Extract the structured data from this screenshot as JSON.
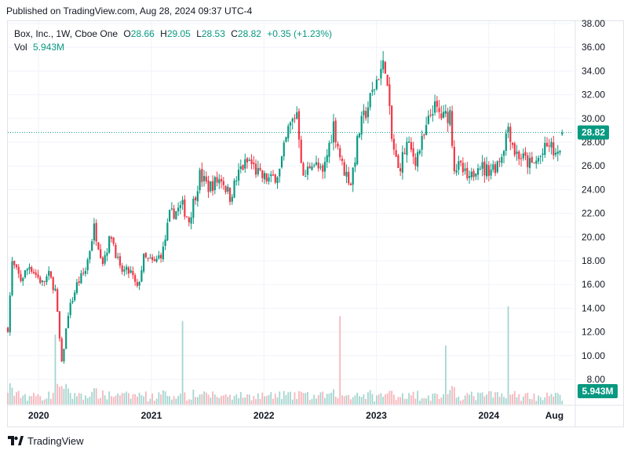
{
  "header": {
    "published": "Published on TradingView.com, Aug 28, 2024 09:37 UTC-4"
  },
  "legend": {
    "symbol": "Box, Inc., 1W, Cboe One",
    "open_label": "O",
    "open": "28.66",
    "high_label": "H",
    "high": "29.05",
    "low_label": "L",
    "low": "28.53",
    "close_label": "C",
    "close": "28.82",
    "change": "+0.35 (+1.23%)",
    "vol_label": "Vol",
    "vol": "5.943M"
  },
  "price_badge": "28.82",
  "volume_badge": "5.943M",
  "footer": {
    "brand": "TradingView",
    "logo_icon": "tradingview-logo-icon"
  },
  "colors": {
    "up": "#089981",
    "down": "#f23645",
    "up_vol": "#a5d6d0",
    "down_vol": "#f7b6bc",
    "grid": "#f0f3fa",
    "axis_text": "#131722"
  },
  "chart_data": {
    "type": "candlestick",
    "title": "Box, Inc., 1W, Cboe One",
    "interval": "1W",
    "y_axis": {
      "position": "right",
      "ylim": [
        6.9,
        38.4
      ],
      "ticks": [
        "8.00",
        "10.00",
        "12.00",
        "14.00",
        "16.00",
        "18.00",
        "20.00",
        "22.00",
        "24.00",
        "26.00",
        "28.00",
        "30.00",
        "32.00",
        "34.00",
        "36.00",
        "38.00"
      ]
    },
    "x_axis": {
      "ticks": [
        "2020",
        "2021",
        "2022",
        "2023",
        "2024",
        "Aug"
      ],
      "xlim": [
        "2019-09-23",
        "2024-09-30"
      ]
    },
    "grid": true,
    "last_price": 28.82,
    "last_volume": "5.943M",
    "volume_max_label_scale": "volume bars scaled to lower pane",
    "price_path": [
      [
        "2019-09-23",
        12.3
      ],
      [
        "2019-10-07",
        17.8
      ],
      [
        "2019-11-04",
        16.4
      ],
      [
        "2019-12-02",
        17.6
      ],
      [
        "2020-01-13",
        16.1
      ],
      [
        "2020-02-03",
        16.8
      ],
      [
        "2020-02-24",
        15.5
      ],
      [
        "2020-03-16",
        9.3
      ],
      [
        "2020-04-06",
        13.6
      ],
      [
        "2020-05-04",
        16.0
      ],
      [
        "2020-06-01",
        17.2
      ],
      [
        "2020-06-29",
        20.8
      ],
      [
        "2020-07-27",
        18.0
      ],
      [
        "2020-08-24",
        20.2
      ],
      [
        "2020-09-21",
        17.2
      ],
      [
        "2020-10-26",
        17.0
      ],
      [
        "2020-11-16",
        15.6
      ],
      [
        "2020-12-07",
        18.2
      ],
      [
        "2021-01-11",
        17.8
      ],
      [
        "2021-02-08",
        18.9
      ],
      [
        "2021-03-01",
        21.8
      ],
      [
        "2021-04-12",
        22.6
      ],
      [
        "2021-05-03",
        21.4
      ],
      [
        "2021-06-07",
        25.2
      ],
      [
        "2021-07-05",
        24.2
      ],
      [
        "2021-08-16",
        25.0
      ],
      [
        "2021-09-13",
        23.4
      ],
      [
        "2021-10-18",
        25.8
      ],
      [
        "2021-11-15",
        26.4
      ],
      [
        "2021-12-20",
        25.1
      ],
      [
        "2022-01-24",
        24.8
      ],
      [
        "2022-02-21",
        25.6
      ],
      [
        "2022-03-21",
        29.0
      ],
      [
        "2022-04-18",
        30.6
      ],
      [
        "2022-05-09",
        24.8
      ],
      [
        "2022-06-06",
        26.5
      ],
      [
        "2022-07-11",
        25.2
      ],
      [
        "2022-08-15",
        29.5
      ],
      [
        "2022-09-12",
        26.0
      ],
      [
        "2022-10-10",
        24.6
      ],
      [
        "2022-11-07",
        29.0
      ],
      [
        "2022-12-12",
        31.6
      ],
      [
        "2023-01-09",
        33.8
      ],
      [
        "2023-01-30",
        34.6
      ],
      [
        "2023-02-20",
        28.2
      ],
      [
        "2023-03-13",
        25.6
      ],
      [
        "2023-04-10",
        27.8
      ],
      [
        "2023-05-08",
        26.6
      ],
      [
        "2023-06-05",
        28.4
      ],
      [
        "2023-07-03",
        31.0
      ],
      [
        "2023-08-07",
        30.0
      ],
      [
        "2023-08-28",
        30.5
      ],
      [
        "2023-09-11",
        26.0
      ],
      [
        "2023-10-02",
        25.8
      ],
      [
        "2023-10-30",
        24.6
      ],
      [
        "2023-11-27",
        26.4
      ],
      [
        "2023-12-18",
        25.6
      ],
      [
        "2024-01-22",
        26.0
      ],
      [
        "2024-02-12",
        27.0
      ],
      [
        "2024-03-04",
        29.4
      ],
      [
        "2024-03-25",
        27.2
      ],
      [
        "2024-04-22",
        26.6
      ],
      [
        "2024-05-20",
        26.0
      ],
      [
        "2024-06-17",
        26.8
      ],
      [
        "2024-07-15",
        27.8
      ],
      [
        "2024-08-12",
        26.6
      ],
      [
        "2024-08-26",
        28.82
      ]
    ],
    "volume_spikes": [
      [
        "2020-02-24",
        13.5
      ],
      [
        "2021-04-12",
        14.6
      ],
      [
        "2022-09-05",
        15.0
      ],
      [
        "2023-08-14",
        12.6
      ],
      [
        "2024-03-04",
        15.8
      ]
    ]
  }
}
